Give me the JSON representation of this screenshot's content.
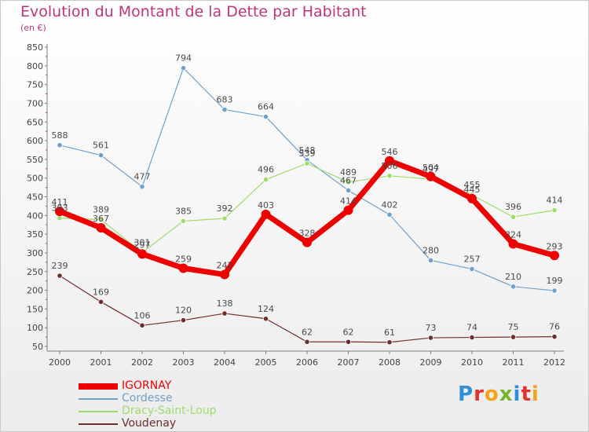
{
  "chart_data": {
    "type": "line",
    "title": "Evolution du Montant de la Dette par Habitant",
    "subtitle": "(en €)",
    "x": [
      "2000",
      "2001",
      "2002",
      "2003",
      "2004",
      "2005",
      "2006",
      "2007",
      "2008",
      "2009",
      "2010",
      "2011",
      "2012"
    ],
    "ylim": [
      50,
      850
    ],
    "yticks": [
      50,
      100,
      150,
      200,
      250,
      300,
      350,
      400,
      450,
      500,
      550,
      600,
      650,
      700,
      750,
      800,
      850
    ],
    "grid": false,
    "legend_position": "bottom-left",
    "series": [
      {
        "name": "IGORNAY",
        "color": "#ee0000",
        "values": [
          411,
          367,
          297,
          259,
          242,
          403,
          328,
          414,
          546,
          504,
          445,
          324,
          293
        ]
      },
      {
        "name": "Cordesse",
        "color": "#6fa0cc",
        "values": [
          588,
          561,
          477,
          794,
          683,
          664,
          548,
          467,
          402,
          280,
          257,
          210,
          199
        ]
      },
      {
        "name": "Dracy-Saint-Loup",
        "color": "#9edc6a",
        "values": [
          393,
          389,
          301,
          385,
          392,
          496,
          539,
          489,
          506,
          497,
          455,
          396,
          414
        ]
      },
      {
        "name": "Voudenay",
        "color": "#6e2e2e",
        "values": [
          239,
          169,
          106,
          120,
          138,
          124,
          62,
          62,
          61,
          73,
          74,
          75,
          76
        ]
      }
    ]
  },
  "legend": {
    "items": [
      {
        "label": "IGORNAY",
        "color": "#ee0000"
      },
      {
        "label": "Cordesse",
        "color": "#6fa0cc"
      },
      {
        "label": "Dracy-Saint-Loup",
        "color": "#9edc6a"
      },
      {
        "label": "Voudenay",
        "color": "#6e2e2e"
      }
    ]
  },
  "logo": {
    "letters": [
      "P",
      "r",
      "o",
      "x",
      "i",
      "t",
      "i"
    ],
    "colors": [
      "#2f8fd8",
      "#e2322d",
      "#f2a31b",
      "#79b52f",
      "#2f8fd8",
      "#e2322d",
      "#f2a31b"
    ]
  }
}
